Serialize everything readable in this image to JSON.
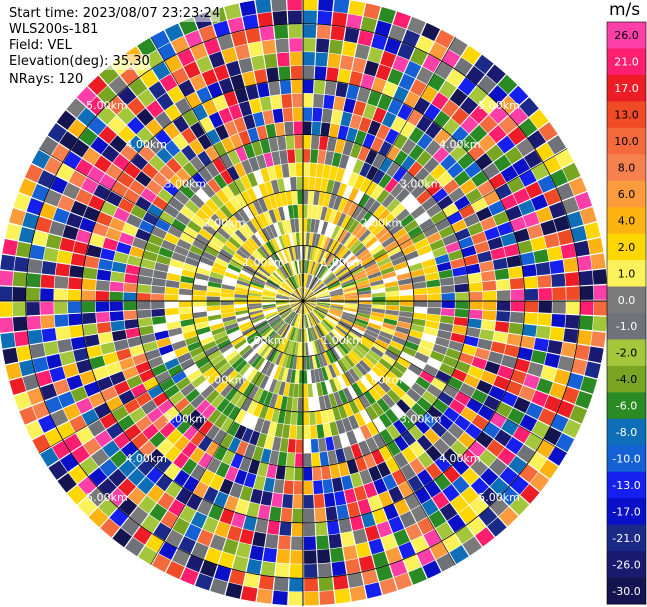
{
  "info": {
    "start_time": "Start time: 2023/08/07 23:23:24",
    "instrument": "WLS200s-181",
    "field": "Field: VEL",
    "elevation": "Elevation(deg): 35.30",
    "nrays": "NRays: 120"
  },
  "colorbar": {
    "unit": "m/s",
    "ticks": [
      "26.0",
      "21.0",
      "17.0",
      "13.0",
      "10.0",
      "8.0",
      "6.0",
      "4.0",
      "2.0",
      "1.0",
      "0.0",
      "-1.0",
      "-2.0",
      "-4.0",
      "-6.0",
      "-8.0",
      "-10.0",
      "-13.0",
      "-17.0",
      "-21.0",
      "-26.0",
      "-30.0"
    ],
    "colors": [
      "#ff3fa8",
      "#ff1f6e",
      "#ee1c24",
      "#f04a26",
      "#f46a3c",
      "#f7814e",
      "#fb9b3c",
      "#fdb310",
      "#ffd700",
      "#fbf25a",
      "#7a7a7a",
      "#6f7279",
      "#a3c63a",
      "#78a622",
      "#2a8a24",
      "#0e6fb8",
      "#1460d4",
      "#1520ee",
      "#0a10c8",
      "#1b2a88",
      "#1a1a70",
      "#141450"
    ]
  },
  "chart_data": {
    "type": "ppi",
    "field": "VEL",
    "unit": "m/s",
    "rings_km": [
      1.0,
      2.0,
      3.0,
      4.0,
      5.0
    ],
    "ring_labels": [
      "1.00km",
      "2.00km",
      "3.00km",
      "4.00km",
      "5.00km"
    ],
    "nrays": 120,
    "nrange": 22,
    "max_range_km": 5.5,
    "zones": [
      {
        "from_km": 0.0,
        "to_km": 1.5,
        "dominant": "gray-yellow"
      },
      {
        "from_km": 1.5,
        "to_km": 3.0,
        "dominant": "yellow-gray-green"
      },
      {
        "from_km": 3.0,
        "to_km": 5.5,
        "dominant": "noise"
      }
    ]
  }
}
